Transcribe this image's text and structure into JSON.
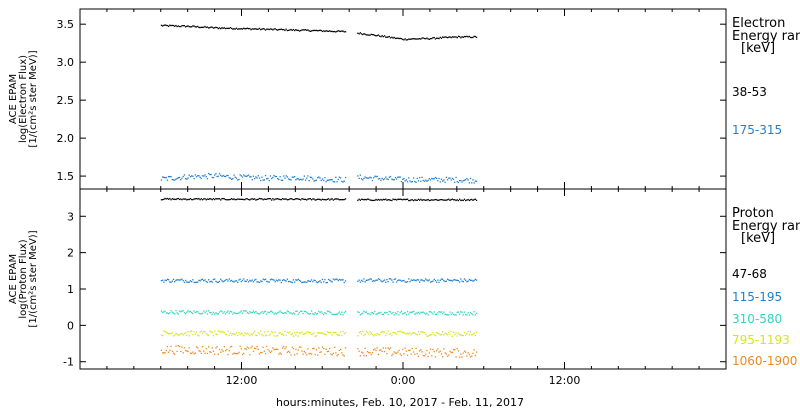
{
  "colors": {
    "black": "#000000",
    "blue": "#1f7fd0",
    "cyan": "#2fd6c0",
    "yellow": "#d7e614",
    "orange": "#ee8a1a"
  },
  "xlabel": "hours:minutes, Feb. 10, 2017 - Feb. 11, 2017",
  "x_tick_labels": [
    "12:00",
    "0:00",
    "12:00"
  ],
  "chart_data": [
    {
      "type": "scatter",
      "panel": "electron",
      "ylabel_lines": [
        "ACE EPAM",
        "log(Electron Flux)",
        "[1/(cm²s ster MeV)]"
      ],
      "legend_title_lines": [
        "Electron",
        "Energy ranges",
        "[keV]"
      ],
      "x_unit": "hours since Feb. 10, 2017 0:00",
      "xlim": [
        0,
        48
      ],
      "ylim": [
        1.33,
        3.7
      ],
      "yticks": [
        1.5,
        2.0,
        2.5,
        3.0,
        3.5
      ],
      "ytick_labels": [
        "1.5",
        "2.0",
        "2.5",
        "3.0",
        "3.5"
      ],
      "gaps": [
        [
          19.7,
          20.6
        ],
        [
          29.5,
          48
        ]
      ],
      "series": [
        {
          "name": "38-53",
          "color": "black",
          "segments": [
            {
              "x": [
                6.0,
                8.0,
                10.0,
                12.0,
                14.0,
                16.0,
                18.0,
                19.7
              ],
              "y": [
                3.49,
                3.48,
                3.46,
                3.45,
                3.44,
                3.43,
                3.42,
                3.41
              ]
            },
            {
              "x": [
                20.6,
                22.0,
                24.0,
                26.0,
                28.0,
                29.5
              ],
              "y": [
                3.39,
                3.36,
                3.31,
                3.32,
                3.34,
                3.34
              ]
            }
          ],
          "noise": 0.01
        },
        {
          "name": "175-315",
          "color": "blue",
          "segments": [
            {
              "x": [
                6.0,
                8.0,
                10.0,
                12.0,
                14.0,
                16.0,
                18.0,
                19.7
              ],
              "y": [
                1.47,
                1.5,
                1.51,
                1.49,
                1.48,
                1.49,
                1.47,
                1.46
              ]
            },
            {
              "x": [
                20.6,
                22.0,
                24.0,
                26.0,
                28.0,
                29.5
              ],
              "y": [
                1.49,
                1.48,
                1.46,
                1.46,
                1.46,
                1.45
              ]
            }
          ],
          "noise": 0.035
        }
      ]
    },
    {
      "type": "scatter",
      "panel": "proton",
      "ylabel_lines": [
        "ACE EPAM",
        "log(Proton Flux)",
        "[1/(cm²s ster MeV)]"
      ],
      "legend_title_lines": [
        "Proton",
        "Energy ranges",
        "[keV]"
      ],
      "x_unit": "hours since Feb. 10, 2017 0:00",
      "xlim": [
        0,
        48
      ],
      "ylim": [
        -1.2,
        3.75
      ],
      "yticks": [
        -1,
        0,
        1,
        2,
        3
      ],
      "ytick_labels": [
        "-1",
        "0",
        "1",
        "2",
        "3"
      ],
      "series": [
        {
          "name": "47-68",
          "color": "black",
          "segments": [
            {
              "x": [
                6.0,
                19.7
              ],
              "y": [
                3.49,
                3.48
              ]
            },
            {
              "x": [
                20.6,
                29.5
              ],
              "y": [
                3.47,
                3.47
              ]
            }
          ],
          "noise": 0.02
        },
        {
          "name": "115-195",
          "color": "blue",
          "segments": [
            {
              "x": [
                6.0,
                19.7
              ],
              "y": [
                1.25,
                1.24
              ]
            },
            {
              "x": [
                20.6,
                29.5
              ],
              "y": [
                1.25,
                1.25
              ]
            }
          ],
          "noise": 0.05
        },
        {
          "name": "310-580",
          "color": "cyan",
          "segments": [
            {
              "x": [
                6.0,
                19.7
              ],
              "y": [
                0.38,
                0.36
              ]
            },
            {
              "x": [
                20.6,
                29.5
              ],
              "y": [
                0.36,
                0.35
              ]
            }
          ],
          "noise": 0.05
        },
        {
          "name": "795-1193",
          "color": "yellow",
          "segments": [
            {
              "x": [
                6.0,
                19.7
              ],
              "y": [
                -0.2,
                -0.22
              ]
            },
            {
              "x": [
                20.6,
                29.5
              ],
              "y": [
                -0.2,
                -0.22
              ]
            }
          ],
          "noise": 0.07
        },
        {
          "name": "1060-1900",
          "color": "orange",
          "segments": [
            {
              "x": [
                6.0,
                19.7
              ],
              "y": [
                -0.65,
                -0.7
              ]
            },
            {
              "x": [
                20.6,
                29.5
              ],
              "y": [
                -0.7,
                -0.75
              ]
            }
          ],
          "noise": 0.12
        }
      ]
    }
  ]
}
